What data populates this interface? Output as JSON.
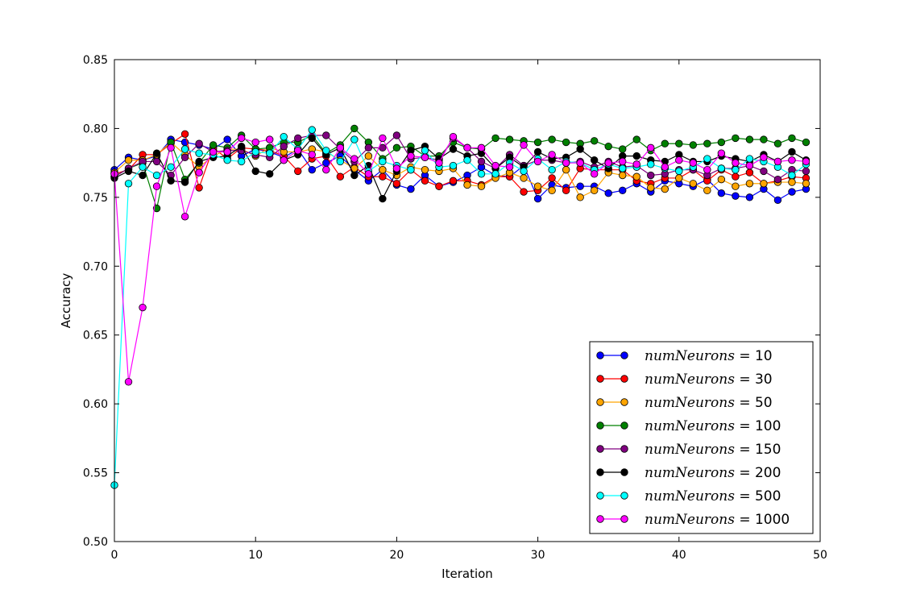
{
  "chart_data": {
    "type": "line",
    "title": "",
    "xlabel": "Iteration",
    "ylabel": "Accuracy",
    "xlim": [
      0,
      50
    ],
    "ylim": [
      0.5,
      0.85
    ],
    "xticks": [
      0,
      10,
      20,
      30,
      40,
      50
    ],
    "yticks": [
      0.5,
      0.55,
      0.6,
      0.65,
      0.7,
      0.75,
      0.8,
      0.85
    ],
    "xtick_labels": [
      "0",
      "10",
      "20",
      "30",
      "40",
      "50"
    ],
    "ytick_labels": [
      "0.50",
      "0.55",
      "0.60",
      "0.65",
      "0.70",
      "0.75",
      "0.80",
      "0.85"
    ],
    "grid": false,
    "legend_position": "bottom-right",
    "legend_prefix": "numNeurons",
    "legend_eq": " = ",
    "x": [
      0,
      1,
      2,
      3,
      4,
      5,
      6,
      7,
      8,
      9,
      10,
      11,
      12,
      13,
      14,
      15,
      16,
      17,
      18,
      19,
      20,
      21,
      22,
      23,
      24,
      25,
      26,
      27,
      28,
      29,
      30,
      31,
      32,
      33,
      34,
      35,
      36,
      37,
      38,
      39,
      40,
      41,
      42,
      43,
      44,
      45,
      46,
      47,
      48,
      49
    ],
    "series": [
      {
        "name": "10",
        "color": "#0000ff",
        "values": [
          0.77,
          0.779,
          0.777,
          0.78,
          0.792,
          0.79,
          0.788,
          0.785,
          0.792,
          0.78,
          0.785,
          0.783,
          0.779,
          0.785,
          0.77,
          0.775,
          0.78,
          0.77,
          0.762,
          0.77,
          0.759,
          0.756,
          0.766,
          0.758,
          0.761,
          0.766,
          0.772,
          0.766,
          0.765,
          0.773,
          0.749,
          0.759,
          0.757,
          0.758,
          0.758,
          0.753,
          0.755,
          0.76,
          0.754,
          0.762,
          0.76,
          0.758,
          0.763,
          0.753,
          0.751,
          0.75,
          0.756,
          0.748,
          0.754,
          0.756
        ]
      },
      {
        "name": "30",
        "color": "#ff0000",
        "values": [
          0.767,
          0.77,
          0.781,
          0.781,
          0.789,
          0.796,
          0.757,
          0.786,
          0.778,
          0.786,
          0.785,
          0.784,
          0.78,
          0.769,
          0.778,
          0.78,
          0.765,
          0.772,
          0.765,
          0.765,
          0.76,
          0.77,
          0.762,
          0.758,
          0.762,
          0.762,
          0.759,
          0.765,
          0.765,
          0.754,
          0.755,
          0.764,
          0.755,
          0.771,
          0.77,
          0.77,
          0.77,
          0.762,
          0.76,
          0.764,
          0.764,
          0.77,
          0.762,
          0.77,
          0.765,
          0.768,
          0.76,
          0.762,
          0.765,
          0.764
        ]
      },
      {
        "name": "50",
        "color": "#ffa500",
        "values": [
          0.768,
          0.777,
          0.777,
          0.781,
          0.79,
          0.781,
          0.772,
          0.78,
          0.785,
          0.785,
          0.78,
          0.786,
          0.783,
          0.783,
          0.785,
          0.783,
          0.777,
          0.771,
          0.78,
          0.77,
          0.766,
          0.772,
          0.77,
          0.769,
          0.771,
          0.759,
          0.758,
          0.764,
          0.768,
          0.764,
          0.758,
          0.755,
          0.77,
          0.75,
          0.755,
          0.768,
          0.766,
          0.765,
          0.757,
          0.756,
          0.764,
          0.76,
          0.755,
          0.763,
          0.758,
          0.76,
          0.76,
          0.761,
          0.761,
          0.76
        ]
      },
      {
        "name": "100",
        "color": "#008000",
        "values": [
          0.765,
          0.771,
          0.775,
          0.742,
          0.79,
          0.763,
          0.775,
          0.788,
          0.786,
          0.795,
          0.785,
          0.786,
          0.79,
          0.79,
          0.795,
          0.782,
          0.788,
          0.8,
          0.79,
          0.778,
          0.786,
          0.787,
          0.78,
          0.78,
          0.79,
          0.786,
          0.785,
          0.793,
          0.792,
          0.791,
          0.79,
          0.792,
          0.79,
          0.789,
          0.791,
          0.787,
          0.785,
          0.792,
          0.784,
          0.789,
          0.789,
          0.788,
          0.789,
          0.79,
          0.793,
          0.792,
          0.792,
          0.789,
          0.793,
          0.79
        ]
      },
      {
        "name": "150",
        "color": "#800080",
        "values": [
          0.765,
          0.771,
          0.776,
          0.776,
          0.766,
          0.779,
          0.789,
          0.783,
          0.784,
          0.784,
          0.781,
          0.779,
          0.787,
          0.793,
          0.795,
          0.795,
          0.785,
          0.776,
          0.786,
          0.786,
          0.795,
          0.778,
          0.779,
          0.777,
          0.793,
          0.786,
          0.776,
          0.771,
          0.781,
          0.773,
          0.777,
          0.777,
          0.775,
          0.776,
          0.772,
          0.776,
          0.772,
          0.773,
          0.766,
          0.767,
          0.77,
          0.77,
          0.766,
          0.771,
          0.771,
          0.773,
          0.769,
          0.763,
          0.77,
          0.769
        ]
      },
      {
        "name": "200",
        "color": "#000000",
        "values": [
          0.764,
          0.769,
          0.766,
          0.782,
          0.762,
          0.761,
          0.776,
          0.779,
          0.78,
          0.787,
          0.769,
          0.767,
          0.777,
          0.781,
          0.793,
          0.781,
          0.786,
          0.766,
          0.773,
          0.749,
          0.769,
          0.784,
          0.787,
          0.778,
          0.785,
          0.78,
          0.782,
          0.771,
          0.779,
          0.772,
          0.783,
          0.778,
          0.779,
          0.785,
          0.777,
          0.771,
          0.78,
          0.78,
          0.777,
          0.776,
          0.781,
          0.776,
          0.776,
          0.78,
          0.778,
          0.776,
          0.781,
          0.776,
          0.783,
          0.777
        ]
      },
      {
        "name": "500",
        "color": "#00ffff",
        "values": [
          0.541,
          0.76,
          0.772,
          0.766,
          0.772,
          0.785,
          0.782,
          0.781,
          0.777,
          0.776,
          0.783,
          0.782,
          0.794,
          0.785,
          0.799,
          0.784,
          0.776,
          0.792,
          0.769,
          0.776,
          0.773,
          0.77,
          0.784,
          0.772,
          0.773,
          0.777,
          0.767,
          0.767,
          0.775,
          0.769,
          0.778,
          0.77,
          0.776,
          0.775,
          0.77,
          0.774,
          0.771,
          0.772,
          0.774,
          0.771,
          0.769,
          0.772,
          0.778,
          0.771,
          0.77,
          0.778,
          0.776,
          0.772,
          0.766,
          0.774
        ]
      },
      {
        "name": "1000",
        "color": "#ff00ff",
        "values": [
          0.767,
          0.616,
          0.67,
          0.758,
          0.786,
          0.736,
          0.768,
          0.783,
          0.783,
          0.793,
          0.79,
          0.792,
          0.777,
          0.784,
          0.781,
          0.77,
          0.786,
          0.778,
          0.767,
          0.793,
          0.771,
          0.78,
          0.779,
          0.775,
          0.794,
          0.786,
          0.786,
          0.773,
          0.772,
          0.788,
          0.776,
          0.781,
          0.775,
          0.775,
          0.767,
          0.775,
          0.776,
          0.774,
          0.786,
          0.772,
          0.777,
          0.775,
          0.77,
          0.782,
          0.775,
          0.773,
          0.779,
          0.776,
          0.777,
          0.776
        ]
      }
    ]
  }
}
